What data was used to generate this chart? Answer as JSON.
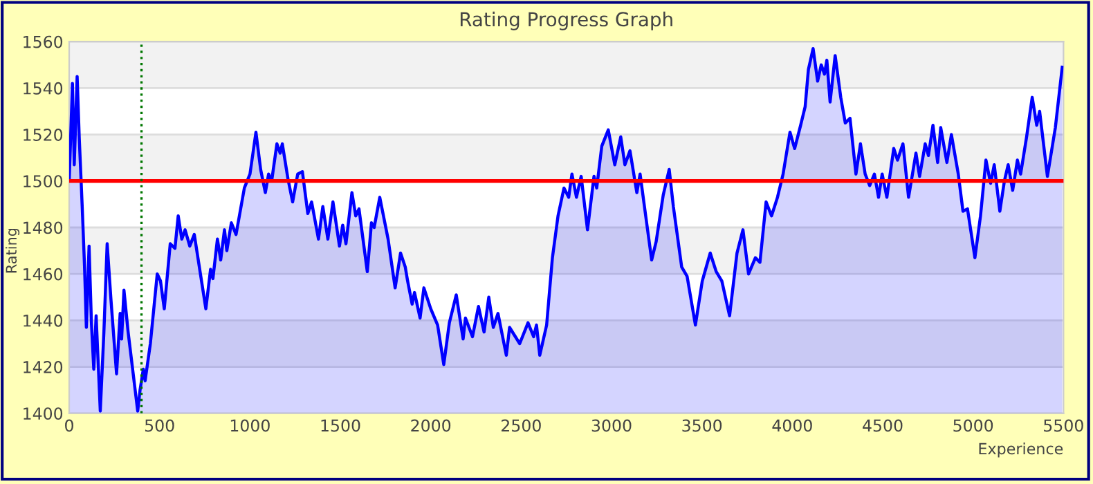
{
  "chart_data": {
    "type": "area",
    "title": "Rating Progress Graph",
    "xlabel": "Experience",
    "ylabel": "Rating",
    "xlim": [
      0,
      5500
    ],
    "xticks": [
      0,
      500,
      1000,
      1500,
      2000,
      2500,
      3000,
      3500,
      4000,
      4500,
      5000,
      5500
    ],
    "ylim": [
      1400,
      1560
    ],
    "yticks": [
      1400,
      1420,
      1440,
      1460,
      1480,
      1500,
      1520,
      1540,
      1560
    ],
    "grid": "y",
    "legend": false,
    "marker": "none",
    "line_style": "solid",
    "ref_lines": [
      {
        "axis": "y",
        "value": 1500,
        "color": "#ff0000",
        "line_style": "solid"
      },
      {
        "axis": "x",
        "value": 400,
        "color": "#007700",
        "line_style": "dotted"
      }
    ],
    "bands": [
      {
        "axis": "y",
        "from": 1540,
        "to": 1560,
        "color": "#f2f2f2"
      },
      {
        "axis": "y",
        "from": 1500,
        "to": 1520,
        "color": "#f2f2f2"
      },
      {
        "axis": "y",
        "from": 1460,
        "to": 1480,
        "color": "#f2f2f2"
      },
      {
        "axis": "y",
        "from": 1420,
        "to": 1440,
        "color": "#f2f2f2"
      }
    ],
    "series": [
      {
        "color": "#0000ff",
        "x": [
          0,
          18,
          28,
          44,
          56,
          72,
          85,
          95,
          110,
          123,
          136,
          149,
          172,
          192,
          210,
          231,
          262,
          282,
          290,
          303,
          326,
          379,
          392,
          410,
          420,
          449,
          487,
          505,
          526,
          559,
          585,
          603,
          623,
          641,
          667,
          692,
          756,
          782,
          795,
          820,
          838,
          859,
          872,
          897,
          923,
          969,
          1000,
          1033,
          1059,
          1085,
          1103,
          1120,
          1149,
          1167,
          1179,
          1210,
          1236,
          1264,
          1290,
          1320,
          1341,
          1379,
          1403,
          1431,
          1459,
          1495,
          1513,
          1531,
          1564,
          1585,
          1603,
          1649,
          1672,
          1687,
          1718,
          1764,
          1803,
          1833,
          1859,
          1872,
          1897,
          1910,
          1941,
          1962,
          2000,
          2038,
          2072,
          2103,
          2141,
          2179,
          2192,
          2231,
          2264,
          2295,
          2321,
          2346,
          2372,
          2418,
          2436,
          2492,
          2538,
          2569,
          2585,
          2603,
          2641,
          2673,
          2704,
          2737,
          2763,
          2781,
          2806,
          2832,
          2867,
          2903,
          2918,
          2946,
          2982,
          3018,
          3051,
          3074,
          3102,
          3140,
          3158,
          3189,
          3222,
          3247,
          3286,
          3319,
          3342,
          3388,
          3418,
          3464,
          3502,
          3546,
          3579,
          3610,
          3653,
          3694,
          3727,
          3758,
          3796,
          3821,
          3855,
          3885,
          3918,
          3949,
          3987,
          4013,
          4046,
          4071,
          4089,
          4115,
          4140,
          4160,
          4178,
          4191,
          4209,
          4237,
          4268,
          4293,
          4319,
          4352,
          4377,
          4403,
          4428,
          4454,
          4477,
          4497,
          4523,
          4561,
          4582,
          4612,
          4643,
          4684,
          4704,
          4735,
          4753,
          4778,
          4804,
          4821,
          4855,
          4880,
          4918,
          4944,
          4969,
          5010,
          5041,
          5071,
          5097,
          5117,
          5148,
          5173,
          5194,
          5219,
          5245,
          5263,
          5296,
          5327,
          5352,
          5368,
          5411,
          5455,
          5493
        ],
        "values": [
          1500,
          1542,
          1507,
          1545,
          1518,
          1489,
          1463,
          1437,
          1472,
          1439,
          1419,
          1442,
          1401,
          1435,
          1473,
          1449,
          1417,
          1443,
          1432,
          1453,
          1435,
          1401,
          1410,
          1419,
          1414,
          1430,
          1460,
          1457,
          1445,
          1473,
          1471,
          1485,
          1475,
          1479,
          1472,
          1477,
          1445,
          1462,
          1458,
          1475,
          1466,
          1479,
          1470,
          1482,
          1477,
          1497,
          1503,
          1521,
          1505,
          1495,
          1503,
          1500,
          1516,
          1512,
          1516,
          1501,
          1491,
          1503,
          1504,
          1486,
          1491,
          1475,
          1489,
          1475,
          1491,
          1472,
          1481,
          1473,
          1495,
          1485,
          1488,
          1461,
          1482,
          1480,
          1493,
          1475,
          1454,
          1469,
          1463,
          1457,
          1447,
          1452,
          1441,
          1454,
          1445,
          1438,
          1421,
          1439,
          1451,
          1432,
          1441,
          1433,
          1446,
          1435,
          1450,
          1437,
          1443,
          1425,
          1437,
          1430,
          1439,
          1433,
          1438,
          1425,
          1438,
          1467,
          1485,
          1497,
          1493,
          1503,
          1493,
          1502,
          1479,
          1502,
          1497,
          1515,
          1522,
          1507,
          1519,
          1507,
          1513,
          1495,
          1503,
          1485,
          1466,
          1474,
          1494,
          1505,
          1489,
          1463,
          1459,
          1438,
          1457,
          1469,
          1461,
          1457,
          1442,
          1469,
          1479,
          1460,
          1467,
          1465,
          1491,
          1485,
          1493,
          1503,
          1521,
          1514,
          1524,
          1532,
          1548,
          1557,
          1543,
          1550,
          1546,
          1552,
          1534,
          1554,
          1536,
          1525,
          1527,
          1503,
          1516,
          1503,
          1498,
          1503,
          1493,
          1503,
          1493,
          1514,
          1509,
          1516,
          1493,
          1512,
          1502,
          1516,
          1511,
          1524,
          1508,
          1523,
          1508,
          1520,
          1503,
          1487,
          1488,
          1467,
          1485,
          1509,
          1499,
          1507,
          1487,
          1500,
          1507,
          1496,
          1509,
          1503,
          1519,
          1536,
          1524,
          1530,
          1502,
          1523,
          1549
        ]
      }
    ]
  }
}
